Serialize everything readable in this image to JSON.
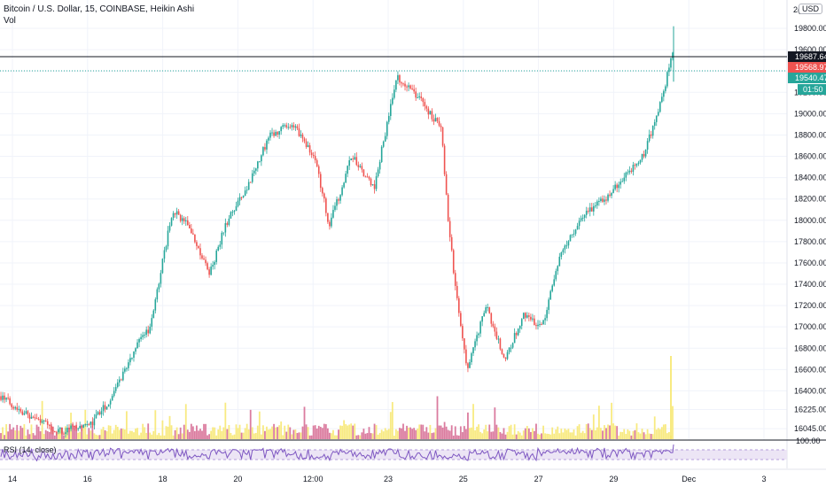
{
  "header": {
    "title": "Bitcoin / U.S. Dollar, 15, COINBASE, Heikin Ashi",
    "sub": "Vol",
    "currency": "USD",
    "top_clip": "2("
  },
  "rsi": {
    "label": "RSI (14, close)",
    "level": "100.00"
  },
  "markers": {
    "last": "19687.64",
    "high": "19568.97",
    "low": "19540.47",
    "countdown": "01:50"
  },
  "colors": {
    "up": "#26a69a",
    "down": "#ef5350",
    "vol_up": "#f7e66b",
    "vol_down": "#d5658e",
    "rsi": "#7e57c2",
    "rsi_band": "#ece5f5"
  },
  "chart_data": {
    "type": "candlestick",
    "title": "Bitcoin / U.S. Dollar, 15, COINBASE, Heikin Ashi",
    "y_ticks": [
      19800,
      19600,
      19400,
      19200,
      19000,
      18800,
      18600,
      18400,
      18200,
      18000,
      17800,
      17600,
      17400,
      17200,
      17000,
      16800,
      16600,
      16400,
      16225,
      16045
    ],
    "x_ticks": [
      "14",
      "16",
      "18",
      "20",
      "12:00",
      "23",
      "25",
      "27",
      "29",
      "Dec",
      "3"
    ],
    "path": [
      {
        "t": 0,
        "p": 16350
      },
      {
        "t": 0.04,
        "p": 16150
      },
      {
        "t": 0.08,
        "p": 16020
      },
      {
        "t": 0.12,
        "p": 16080
      },
      {
        "t": 0.15,
        "p": 16350
      },
      {
        "t": 0.18,
        "p": 16800
      },
      {
        "t": 0.2,
        "p": 17000
      },
      {
        "t": 0.23,
        "p": 18100
      },
      {
        "t": 0.25,
        "p": 17950
      },
      {
        "t": 0.28,
        "p": 17500
      },
      {
        "t": 0.3,
        "p": 17950
      },
      {
        "t": 0.33,
        "p": 18300
      },
      {
        "t": 0.36,
        "p": 18800
      },
      {
        "t": 0.39,
        "p": 18900
      },
      {
        "t": 0.42,
        "p": 18600
      },
      {
        "t": 0.44,
        "p": 17950
      },
      {
        "t": 0.47,
        "p": 18600
      },
      {
        "t": 0.5,
        "p": 18300
      },
      {
        "t": 0.53,
        "p": 19350
      },
      {
        "t": 0.56,
        "p": 19150
      },
      {
        "t": 0.59,
        "p": 18850
      },
      {
        "t": 0.6,
        "p": 17950
      },
      {
        "t": 0.61,
        "p": 17300
      },
      {
        "t": 0.625,
        "p": 16600
      },
      {
        "t": 0.65,
        "p": 17200
      },
      {
        "t": 0.675,
        "p": 16700
      },
      {
        "t": 0.7,
        "p": 17100
      },
      {
        "t": 0.725,
        "p": 17000
      },
      {
        "t": 0.75,
        "p": 17700
      },
      {
        "t": 0.78,
        "p": 18050
      },
      {
        "t": 0.81,
        "p": 18200
      },
      {
        "t": 0.84,
        "p": 18450
      },
      {
        "t": 0.86,
        "p": 18600
      },
      {
        "t": 0.88,
        "p": 19000
      },
      {
        "t": 0.9,
        "p": 19560
      }
    ],
    "y_range": [
      15980,
      19900
    ]
  }
}
